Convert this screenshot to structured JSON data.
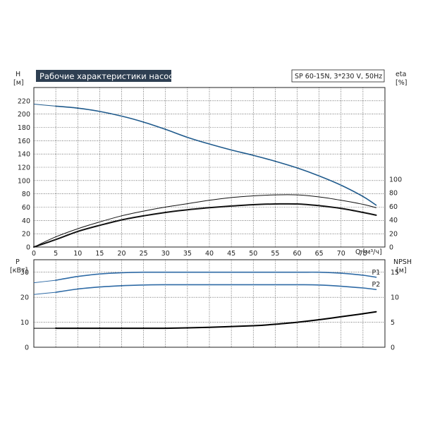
{
  "header": {
    "title": "Рабочие характеристики насоса",
    "pump_info": "SP 60-15N, 3*230 V, 50Hz"
  },
  "colors": {
    "title_bg": "#2e3f52",
    "head_curve": "#1f5a8c",
    "p1_curve": "#2e6aa5",
    "p2_curve": "#2e6aa5",
    "eta_curves": "#111111",
    "npsh_curve": "#000000"
  },
  "axes": {
    "h_label": "H",
    "h_unit": "[м]",
    "eta_label": "eta",
    "eta_unit": "[%]",
    "q_label": "Q [м³/ч]",
    "p_label": "P",
    "p_unit": "[кВт]",
    "npsh_label": "NPSH",
    "npsh_unit": "[м]"
  },
  "chart_data": [
    {
      "type": "line",
      "panel": "top",
      "x_ticks": [
        "0",
        "5",
        "10",
        "15",
        "20",
        "25",
        "30",
        "35",
        "40",
        "45",
        "50",
        "55",
        "60",
        "65",
        "70",
        "75"
      ],
      "xlim": [
        0,
        80
      ],
      "y_ticks_left": [
        "0",
        "20",
        "40",
        "60",
        "80",
        "100",
        "120",
        "140",
        "160",
        "180",
        "200",
        "220"
      ],
      "ylim_left": [
        0,
        240
      ],
      "y_ticks_right": [
        "0",
        "20",
        "40",
        "60",
        "80",
        "100"
      ],
      "grid": true,
      "series": [
        {
          "name": "",
          "axis": "H",
          "color_key": "head_curve",
          "style": "solid",
          "points": [
            [
              0,
              215
            ],
            [
              5,
              212
            ],
            [
              10,
              209
            ],
            [
              15,
              204
            ],
            [
              20,
              197
            ],
            [
              25,
              188
            ],
            [
              30,
              177
            ],
            [
              35,
              165
            ],
            [
              40,
              155
            ],
            [
              45,
              146
            ],
            [
              50,
              138
            ],
            [
              55,
              129
            ],
            [
              60,
              119
            ],
            [
              65,
              107
            ],
            [
              70,
              93
            ],
            [
              75,
              76
            ],
            [
              78,
              63
            ]
          ]
        },
        {
          "name": "",
          "axis": "eta",
          "color_key": "eta_curves",
          "style": "thin",
          "points": [
            [
              0,
              0
            ],
            [
              5,
              15
            ],
            [
              10,
              27
            ],
            [
              15,
              37
            ],
            [
              20,
              46
            ],
            [
              25,
              53
            ],
            [
              30,
              59
            ],
            [
              35,
              64
            ],
            [
              40,
              69
            ],
            [
              45,
              73
            ],
            [
              50,
              75.5
            ],
            [
              55,
              77
            ],
            [
              60,
              77
            ],
            [
              65,
              74
            ],
            [
              70,
              69
            ],
            [
              75,
              63
            ],
            [
              78,
              58
            ]
          ]
        },
        {
          "name": "",
          "axis": "eta",
          "color_key": "eta_curves",
          "style": "thick",
          "points": [
            [
              0,
              0
            ],
            [
              5,
              11
            ],
            [
              10,
              23
            ],
            [
              15,
              32
            ],
            [
              20,
              40
            ],
            [
              25,
              46
            ],
            [
              30,
              51
            ],
            [
              35,
              55
            ],
            [
              40,
              58
            ],
            [
              45,
              60.5
            ],
            [
              50,
              62.5
            ],
            [
              55,
              63.5
            ],
            [
              60,
              63.5
            ],
            [
              65,
              61
            ],
            [
              70,
              57
            ],
            [
              75,
              51
            ],
            [
              78,
              47
            ]
          ]
        }
      ]
    },
    {
      "type": "line",
      "panel": "bottom",
      "x_ticks": [],
      "xlim": [
        0,
        80
      ],
      "y_ticks_left": [
        "0",
        "10",
        "20",
        "30"
      ],
      "ylim_left": [
        0,
        35
      ],
      "y_ticks_right": [
        "0",
        "5",
        "10",
        "15"
      ],
      "grid": true,
      "series": [
        {
          "name": "P1",
          "axis": "P",
          "color_key": "p1_curve",
          "style": "solid",
          "points": [
            [
              0,
              25.8
            ],
            [
              5,
              26.8
            ],
            [
              10,
              28.3
            ],
            [
              15,
              29.3
            ],
            [
              20,
              29.8
            ],
            [
              25,
              30.0
            ],
            [
              30,
              30.0
            ],
            [
              40,
              30.0
            ],
            [
              50,
              30.0
            ],
            [
              60,
              30.0
            ],
            [
              65,
              30.0
            ],
            [
              70,
              29.6
            ],
            [
              75,
              28.8
            ],
            [
              78,
              28.0
            ]
          ]
        },
        {
          "name": "P2",
          "axis": "P",
          "color_key": "p2_curve",
          "style": "solid",
          "points": [
            [
              0,
              21.1
            ],
            [
              5,
              22.0
            ],
            [
              10,
              23.3
            ],
            [
              15,
              24.1
            ],
            [
              20,
              24.6
            ],
            [
              25,
              24.9
            ],
            [
              30,
              25.0
            ],
            [
              40,
              25.0
            ],
            [
              50,
              25.0
            ],
            [
              60,
              25.0
            ],
            [
              65,
              24.9
            ],
            [
              70,
              24.4
            ],
            [
              75,
              23.7
            ],
            [
              78,
              23.1
            ]
          ]
        },
        {
          "name": "",
          "axis": "NPSH",
          "color_key": "npsh_curve",
          "style": "thick",
          "points": [
            [
              0,
              3.8
            ],
            [
              5,
              3.8
            ],
            [
              10,
              3.8
            ],
            [
              20,
              3.8
            ],
            [
              30,
              3.8
            ],
            [
              40,
              4.0
            ],
            [
              50,
              4.3
            ],
            [
              55,
              4.6
            ],
            [
              60,
              5.0
            ],
            [
              65,
              5.5
            ],
            [
              70,
              6.1
            ],
            [
              75,
              6.7
            ],
            [
              78,
              7.1
            ]
          ]
        }
      ]
    }
  ]
}
